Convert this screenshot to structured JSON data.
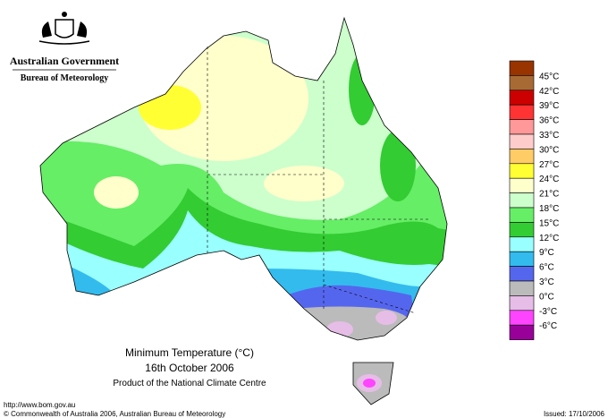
{
  "header": {
    "government": "Australian Government",
    "agency": "Bureau of Meteorology"
  },
  "legend": {
    "labels": [
      "45°C",
      "42°C",
      "39°C",
      "36°C",
      "33°C",
      "30°C",
      "27°C",
      "24°C",
      "21°C",
      "18°C",
      "15°C",
      "12°C",
      "9°C",
      "6°C",
      "3°C",
      "0°C",
      "-3°C",
      "-6°C"
    ],
    "colors": [
      "#993300",
      "#a86a34",
      "#cc0000",
      "#ff3333",
      "#ff9999",
      "#ffcccc",
      "#ffcc66",
      "#ffff33",
      "#ffffcc",
      "#ccffcc",
      "#66ee66",
      "#33cc33",
      "#99ffff",
      "#33bbee",
      "#5566ee",
      "#bbbbbb",
      "#e6bde6",
      "#ff44ff",
      "#990099"
    ]
  },
  "map": {
    "title": "Minimum Temperature (°C)",
    "date": "16th October 2006",
    "credit": "Product of the National Climate Centre"
  },
  "footer": {
    "url": "http://www.bom.gov.au",
    "copyright": "© Commonwealth of Australia 2006, Australian Bureau of Meteorology",
    "issued": "Issued: 17/10/2006"
  }
}
